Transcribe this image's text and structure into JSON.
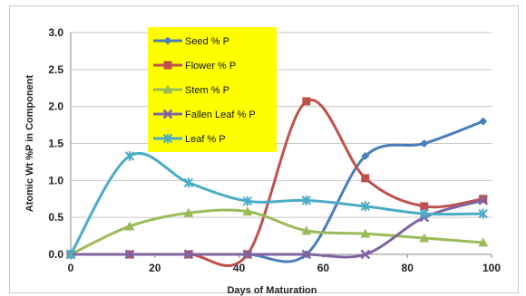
{
  "chart_data": {
    "type": "line",
    "xlabel": "Days of Maturation",
    "ylabel": "Atomic Wt %P in Component",
    "xlim": [
      0,
      100
    ],
    "ylim": [
      0,
      3.0
    ],
    "xticks": [
      "0",
      "20",
      "40",
      "60",
      "80",
      "100"
    ],
    "yticks": [
      "0.0",
      "0.5",
      "1.0",
      "1.5",
      "2.0",
      "2.5",
      "3.0"
    ],
    "grid": "horizontal",
    "legend_position": "top-center",
    "legend_background": "#ffff00",
    "series": [
      {
        "name": "Seed  % P",
        "color": "#4a7ebb",
        "marker": "diamond",
        "x": [
          0,
          14,
          28,
          42,
          56,
          70,
          84,
          98
        ],
        "y": [
          0,
          0,
          0,
          0,
          0,
          1.33,
          1.5,
          1.8
        ]
      },
      {
        "name": "Flower  % P",
        "color": "#c0504d",
        "marker": "square",
        "x": [
          0,
          14,
          28,
          42,
          56,
          70,
          84,
          98
        ],
        "y": [
          0,
          0,
          0,
          0,
          2.07,
          1.03,
          0.65,
          0.75
        ]
      },
      {
        "name": "Stem  % P",
        "color": "#9bbb59",
        "marker": "triangle",
        "x": [
          0,
          14,
          28,
          42,
          56,
          70,
          84,
          98
        ],
        "y": [
          0,
          0.38,
          0.56,
          0.58,
          0.32,
          0.28,
          0.22,
          0.16
        ]
      },
      {
        "name": "Fallen Leaf  % P",
        "color": "#8064a2",
        "marker": "x",
        "x": [
          0,
          14,
          28,
          42,
          56,
          70,
          84,
          98
        ],
        "y": [
          0,
          0,
          0,
          0,
          0,
          0,
          0.5,
          0.73
        ]
      },
      {
        "name": "Leaf  % P",
        "color": "#4bacc6",
        "marker": "star",
        "x": [
          0,
          14,
          28,
          42,
          56,
          70,
          84,
          98
        ],
        "y": [
          0,
          1.33,
          0.97,
          0.72,
          0.73,
          0.65,
          0.55,
          0.55
        ]
      }
    ]
  }
}
